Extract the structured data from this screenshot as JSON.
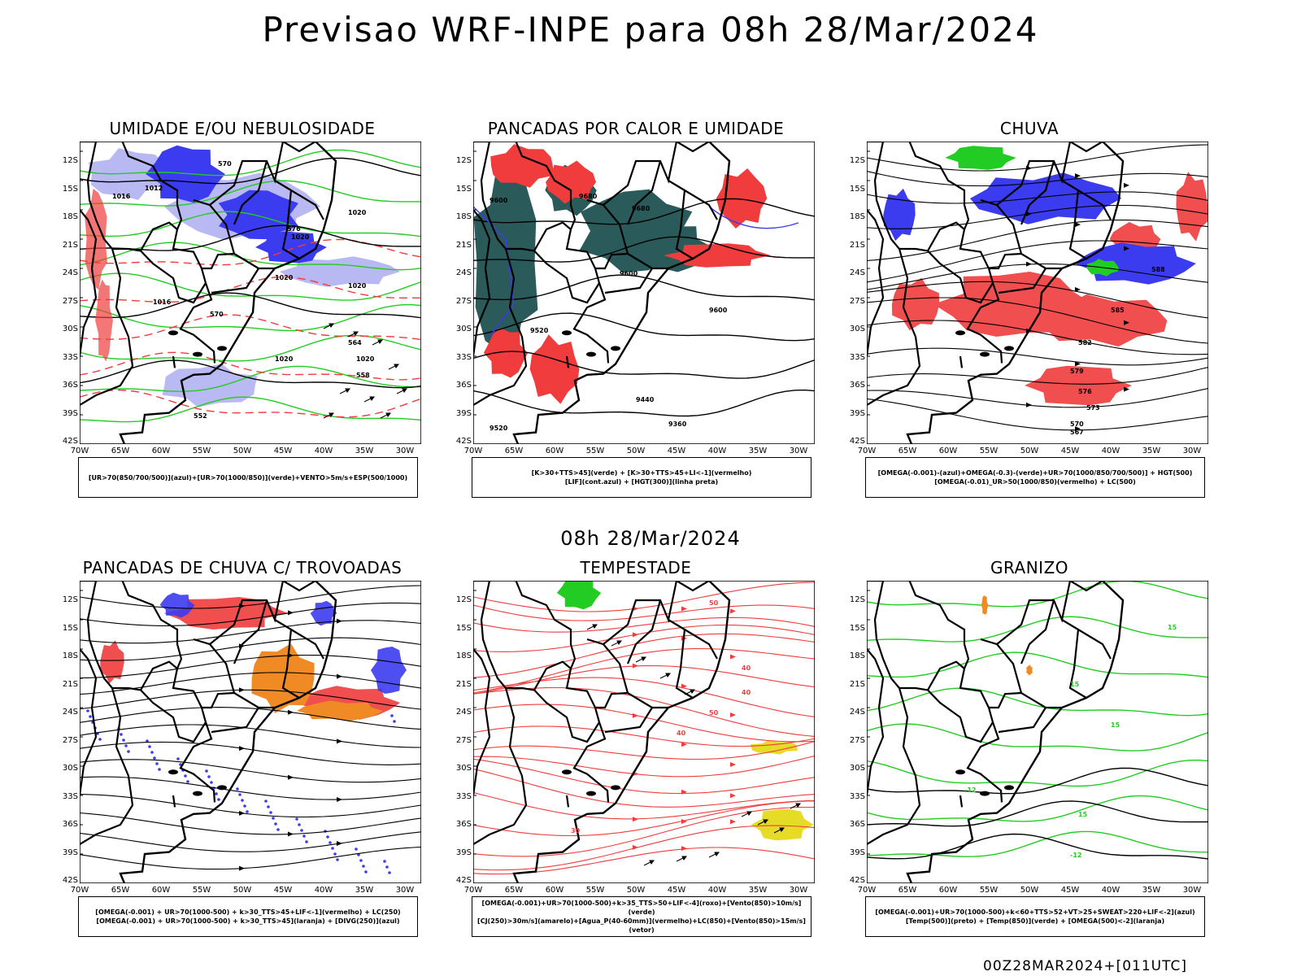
{
  "title": "Previsao WRF-INPE  para 08h 28/Mar/2024",
  "middle_title": "08h 28/Mar/2024",
  "footer": "00Z28MAR2024+[011UTC]",
  "axes": {
    "lat_labels": [
      "12S",
      "15S",
      "18S",
      "21S",
      "24S",
      "27S",
      "30S",
      "33S",
      "36S",
      "39S",
      "42S"
    ],
    "lon_labels": [
      "70W",
      "65W",
      "60W",
      "55W",
      "50W",
      "45W",
      "40W",
      "35W",
      "30W"
    ]
  },
  "colors": {
    "blue": "#3b3bf0",
    "light_blue": "#a7a7f0",
    "red": "#f03c3c",
    "green": "#22cc22",
    "dark_teal": "#2a5a5a",
    "orange": "#f08a24",
    "yellow": "#e6dc28"
  },
  "panels": [
    {
      "id": "umidade",
      "title": "UMIDADE E/OU NEBULOSIDADE",
      "legend": [
        "[UR>70(850/700/500)](azul)+[UR>70(1000/850)](verde)+VENTO>5m/s+ESP(500/1000)"
      ],
      "contour_labels": [
        "1016",
        "1020",
        "1020",
        "1020",
        "1016",
        "1012",
        "1020",
        "1020",
        "1020",
        "576",
        "570",
        "570",
        "564",
        "558",
        "552"
      ]
    },
    {
      "id": "pancadas-calor",
      "title": "PANCADAS POR CALOR E UMIDADE",
      "legend": [
        "[K>30+TTS>45](verde) + [K>30+TTS>45+LI<-1](vermelho)",
        "[LIF](cont.azul) + [HGT(300)](linha preta)"
      ],
      "contour_labels": [
        "9600",
        "9680",
        "9680",
        "9600",
        "9520",
        "9440",
        "9360",
        "9520",
        "9600"
      ]
    },
    {
      "id": "chuva",
      "title": "CHUVA",
      "legend": [
        "[OMEGA(-0.001)-(azul)+OMEGA(-0.3)-(verde)+UR>70(1000/850/700/500)] + HGT(500)",
        "[OMEGA(-0.01)_UR>50(1000/850)(vermelho) + LC(500)"
      ],
      "contour_labels": [
        "585",
        "582",
        "579",
        "576",
        "573",
        "570",
        "567",
        "588"
      ]
    },
    {
      "id": "pancadas-trovoadas",
      "title": "PANCADAS DE CHUVA C/ TROVOADAS",
      "legend": [
        "[OMEGA(-0.001) + UR>70(1000-500) + k>30_TTS>45+LIF<-1](vermelho) + LC(250)",
        "[OMEGA(-0.001) + UR>70(1000-500) + k>30_TTS>45](laranja) + [DIVG(250)](azul)"
      ],
      "contour_labels": []
    },
    {
      "id": "tempestade",
      "title": "TEMPESTADE",
      "legend": [
        "[OMEGA(-0.001)+UR>70(1000-500)+k>35_TTS>50+LIF<-4](roxo)+[Vento(850)>10m/s](verde)",
        "[CJ(250)>30m/s](amarelo)+[Agua_P(40-60mm)](vermelho)+LC(850)+[Vento(850)>15m/s](vetor)"
      ],
      "contour_labels": [
        "50",
        "40",
        "40",
        "50",
        "40",
        "30"
      ]
    },
    {
      "id": "granizo",
      "title": "GRANIZO",
      "legend": [
        "[OMEGA(-0.001)+UR>70(1000-500)+k<60+TTS>52+VT>25+SWEAT>220+LIF<-2](azul)",
        "[Temp(500)](preto) + [Temp(850)](verde) + [OMEGA(500)<-2](laranja)"
      ],
      "contour_labels": [
        "15",
        "15",
        "15",
        "15",
        "-12",
        "-12"
      ]
    }
  ]
}
